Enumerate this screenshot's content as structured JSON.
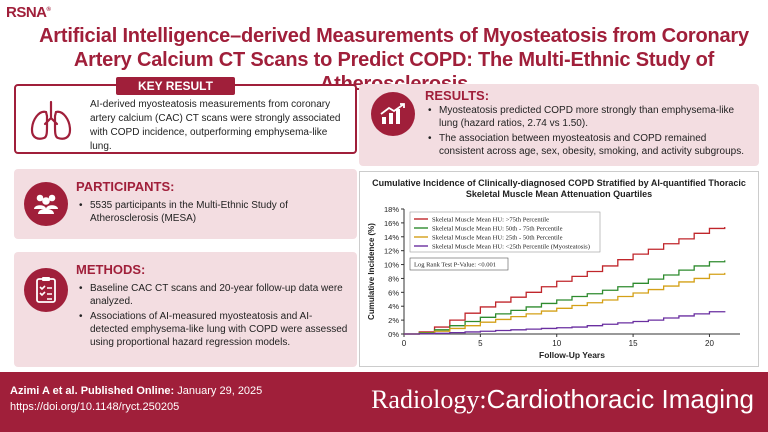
{
  "header": {
    "logo": "RSNA",
    "title_line1": "Artificial Intelligence–derived Measurements of Myosteatosis from Coronary",
    "title_line2": "Artery Calcium CT Scans to Predict COPD: The Multi-Ethnic Study of Atherosclerosis"
  },
  "key_result": {
    "label": "KEY RESULT",
    "icon": "lungs-icon",
    "text": "AI-derived myosteatosis measurements from coronary artery calcium (CAC) CT scans were strongly associated with COPD incidence, outperforming emphysema-like lung."
  },
  "participants": {
    "heading": "PARTICIPANTS:",
    "icon": "people-icon",
    "bullets": [
      "5535 participants in the Multi-Ethnic Study of Atherosclerosis (MESA)"
    ]
  },
  "methods": {
    "heading": "METHODS:",
    "icon": "clipboard-checklist-icon",
    "bullets": [
      "Baseline CAC CT scans and 20-year follow-up data were analyzed.",
      "Associations of AI-measured myosteatosis and AI-detected emphysema-like lung with COPD were assessed using proportional hazard regression models."
    ]
  },
  "results": {
    "heading": "RESULTS:",
    "icon": "rising-chart-icon",
    "bullets": [
      "Myosteatosis predicted COPD more strongly than emphysema-like lung (hazard ratios, 2.74 vs 1.50).",
      "The association between myosteatosis and COPD remained consistent across age, sex, obesity, smoking, and activity subgroups."
    ]
  },
  "chart_data": {
    "type": "line",
    "title": "Cumulative Incidence of Clinically-diagnosed COPD Stratified by AI-quantified Thoracic Skeletal Muscle Mean Attenuation Quartiles",
    "xlabel": "Follow-Up Years",
    "ylabel": "Cumulative Incidence (%)",
    "xlim": [
      0,
      22
    ],
    "ylim": [
      0,
      18
    ],
    "xticks": [
      0,
      5,
      10,
      15,
      20
    ],
    "yticks": [
      "0%",
      "2%",
      "4%",
      "6%",
      "8%",
      "10%",
      "12%",
      "14%",
      "16%",
      "18%"
    ],
    "annotation": "Log Rank Test P-Value: <0.001",
    "legend_position": "top-left",
    "series": [
      {
        "name": "Skeletal Muscle Mean HU: >75th Percentile",
        "color": "#c0262b",
        "x": [
          0,
          1,
          2,
          3,
          4,
          5,
          6,
          7,
          8,
          9,
          10,
          11,
          12,
          13,
          14,
          15,
          16,
          17,
          18,
          19,
          20,
          21
        ],
        "y": [
          0,
          0.3,
          1.0,
          2.0,
          3.0,
          3.9,
          4.6,
          5.3,
          6.0,
          6.8,
          7.6,
          8.3,
          9.0,
          9.8,
          10.7,
          11.5,
          12.2,
          13.0,
          13.7,
          14.5,
          15.2,
          15.4
        ]
      },
      {
        "name": "Skeletal Muscle Mean HU: 50th - 75th Percentile",
        "color": "#2e8b2e",
        "x": [
          0,
          1,
          2,
          3,
          4,
          5,
          6,
          7,
          8,
          9,
          10,
          11,
          12,
          13,
          14,
          15,
          16,
          17,
          18,
          19,
          20,
          21
        ],
        "y": [
          0,
          0.2,
          0.6,
          1.2,
          1.8,
          2.4,
          2.9,
          3.4,
          3.9,
          4.4,
          4.9,
          5.4,
          5.8,
          6.3,
          6.8,
          7.3,
          7.9,
          8.5,
          9.2,
          9.8,
          10.4,
          10.6
        ]
      },
      {
        "name": "Skeletal Muscle Mean HU: 25th - 50th Percentile",
        "color": "#d4a017",
        "x": [
          0,
          1,
          2,
          3,
          4,
          5,
          6,
          7,
          8,
          9,
          10,
          11,
          12,
          13,
          14,
          15,
          16,
          17,
          18,
          19,
          20,
          21
        ],
        "y": [
          0,
          0.1,
          0.4,
          0.8,
          1.2,
          1.7,
          2.1,
          2.5,
          2.9,
          3.3,
          3.7,
          4.1,
          4.5,
          4.9,
          5.4,
          5.9,
          6.4,
          6.9,
          7.5,
          8.0,
          8.6,
          8.8
        ]
      },
      {
        "name": "Skeletal Muscle Mean HU: <25th Percentile (Myosteatosis)",
        "color": "#6a2fa0",
        "x": [
          0,
          1,
          2,
          3,
          4,
          5,
          6,
          7,
          8,
          9,
          10,
          11,
          12,
          13,
          14,
          15,
          16,
          17,
          18,
          19,
          20,
          21
        ],
        "y": [
          0,
          0.05,
          0.1,
          0.2,
          0.3,
          0.4,
          0.5,
          0.6,
          0.7,
          0.8,
          0.9,
          1.0,
          1.2,
          1.4,
          1.6,
          1.8,
          2.0,
          2.3,
          2.6,
          2.9,
          3.2,
          3.3
        ]
      }
    ]
  },
  "footer": {
    "cite_bold": "Azimi A et al. Published Online:",
    "cite_date": "January 29, 2025",
    "doi": "https://doi.org/10.1148/ryct.250205",
    "journal_part1": "Radiology:",
    "journal_part2": "Cardiothoracic Imaging"
  }
}
